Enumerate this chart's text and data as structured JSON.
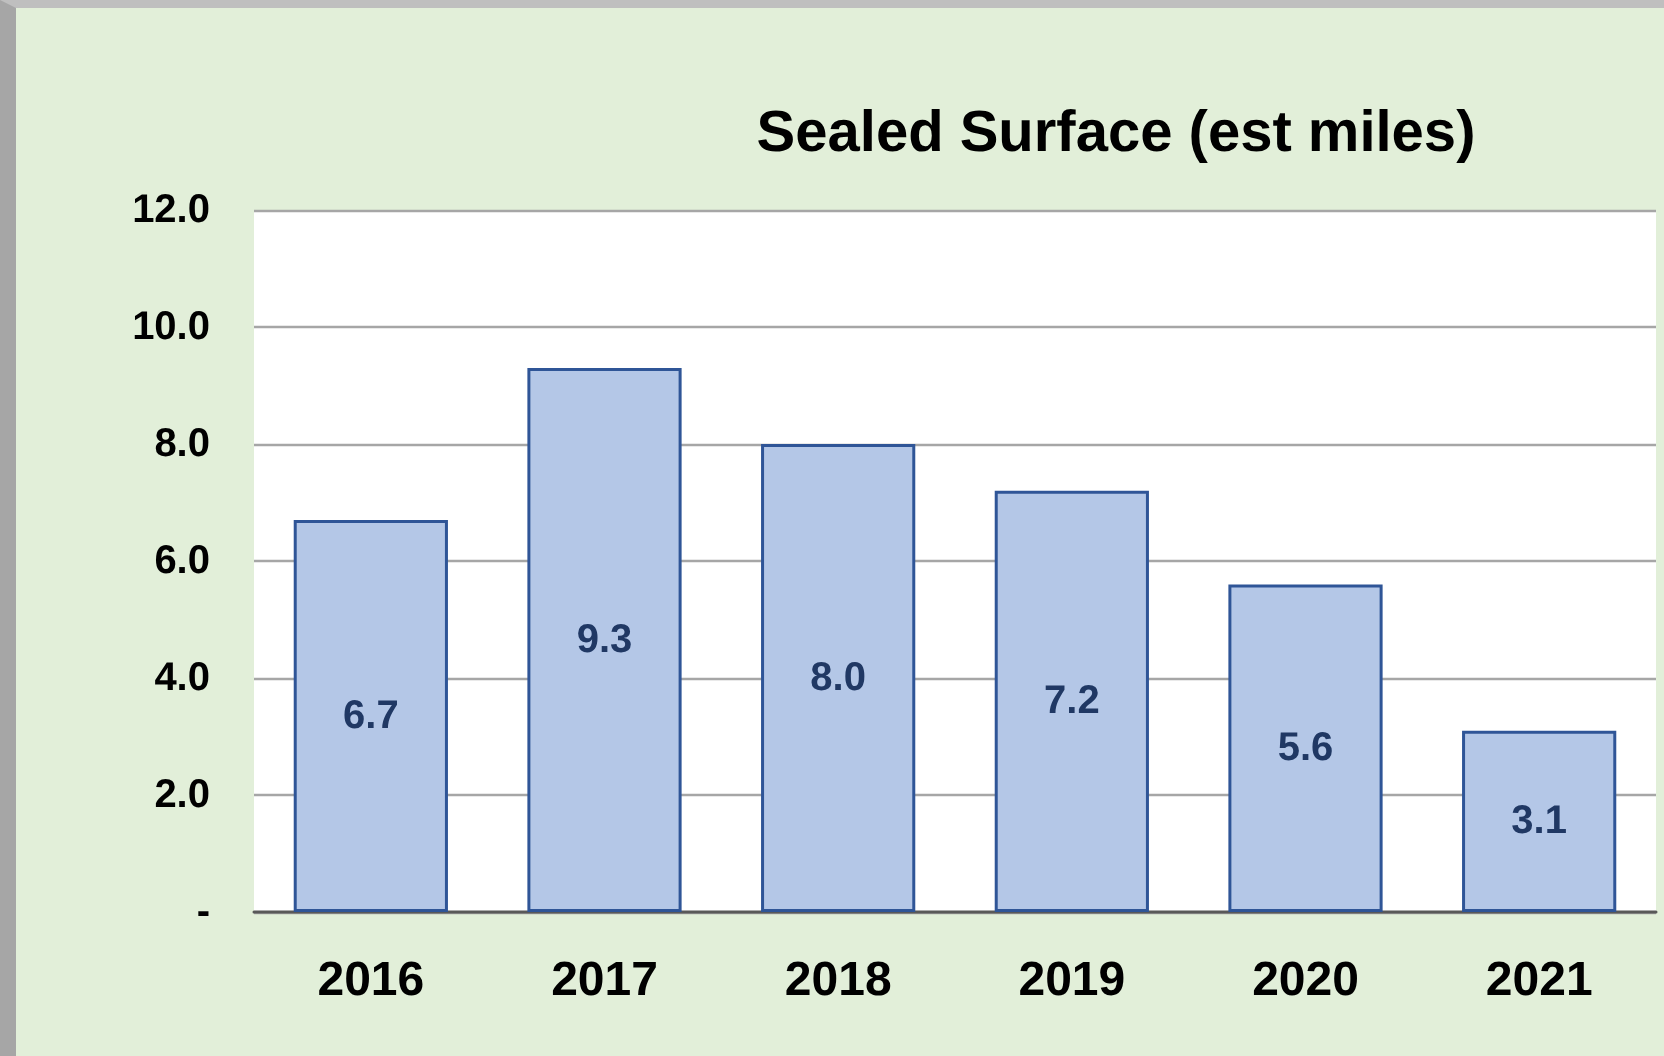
{
  "chart_data": {
    "type": "bar",
    "title": "Sealed Surface (est miles)",
    "categories": [
      "2016",
      "2017",
      "2018",
      "2019",
      "2020",
      "2021"
    ],
    "values": [
      6.7,
      9.3,
      8.0,
      7.2,
      5.6,
      3.1
    ],
    "value_labels": [
      "6.7",
      "9.3",
      "8.0",
      "7.2",
      "5.6",
      "3.1"
    ],
    "color": "#b4c7e7",
    "ylim": [
      0,
      12
    ],
    "yticks": [
      {
        "value": 0,
        "label": "-"
      },
      {
        "value": 2,
        "label": "2.0"
      },
      {
        "value": 4,
        "label": "4.0"
      },
      {
        "value": 6,
        "label": "6.0"
      },
      {
        "value": 8,
        "label": "8.0"
      },
      {
        "value": 10,
        "label": "10.0"
      },
      {
        "value": 12,
        "label": "12.0"
      }
    ],
    "grid": "y"
  }
}
